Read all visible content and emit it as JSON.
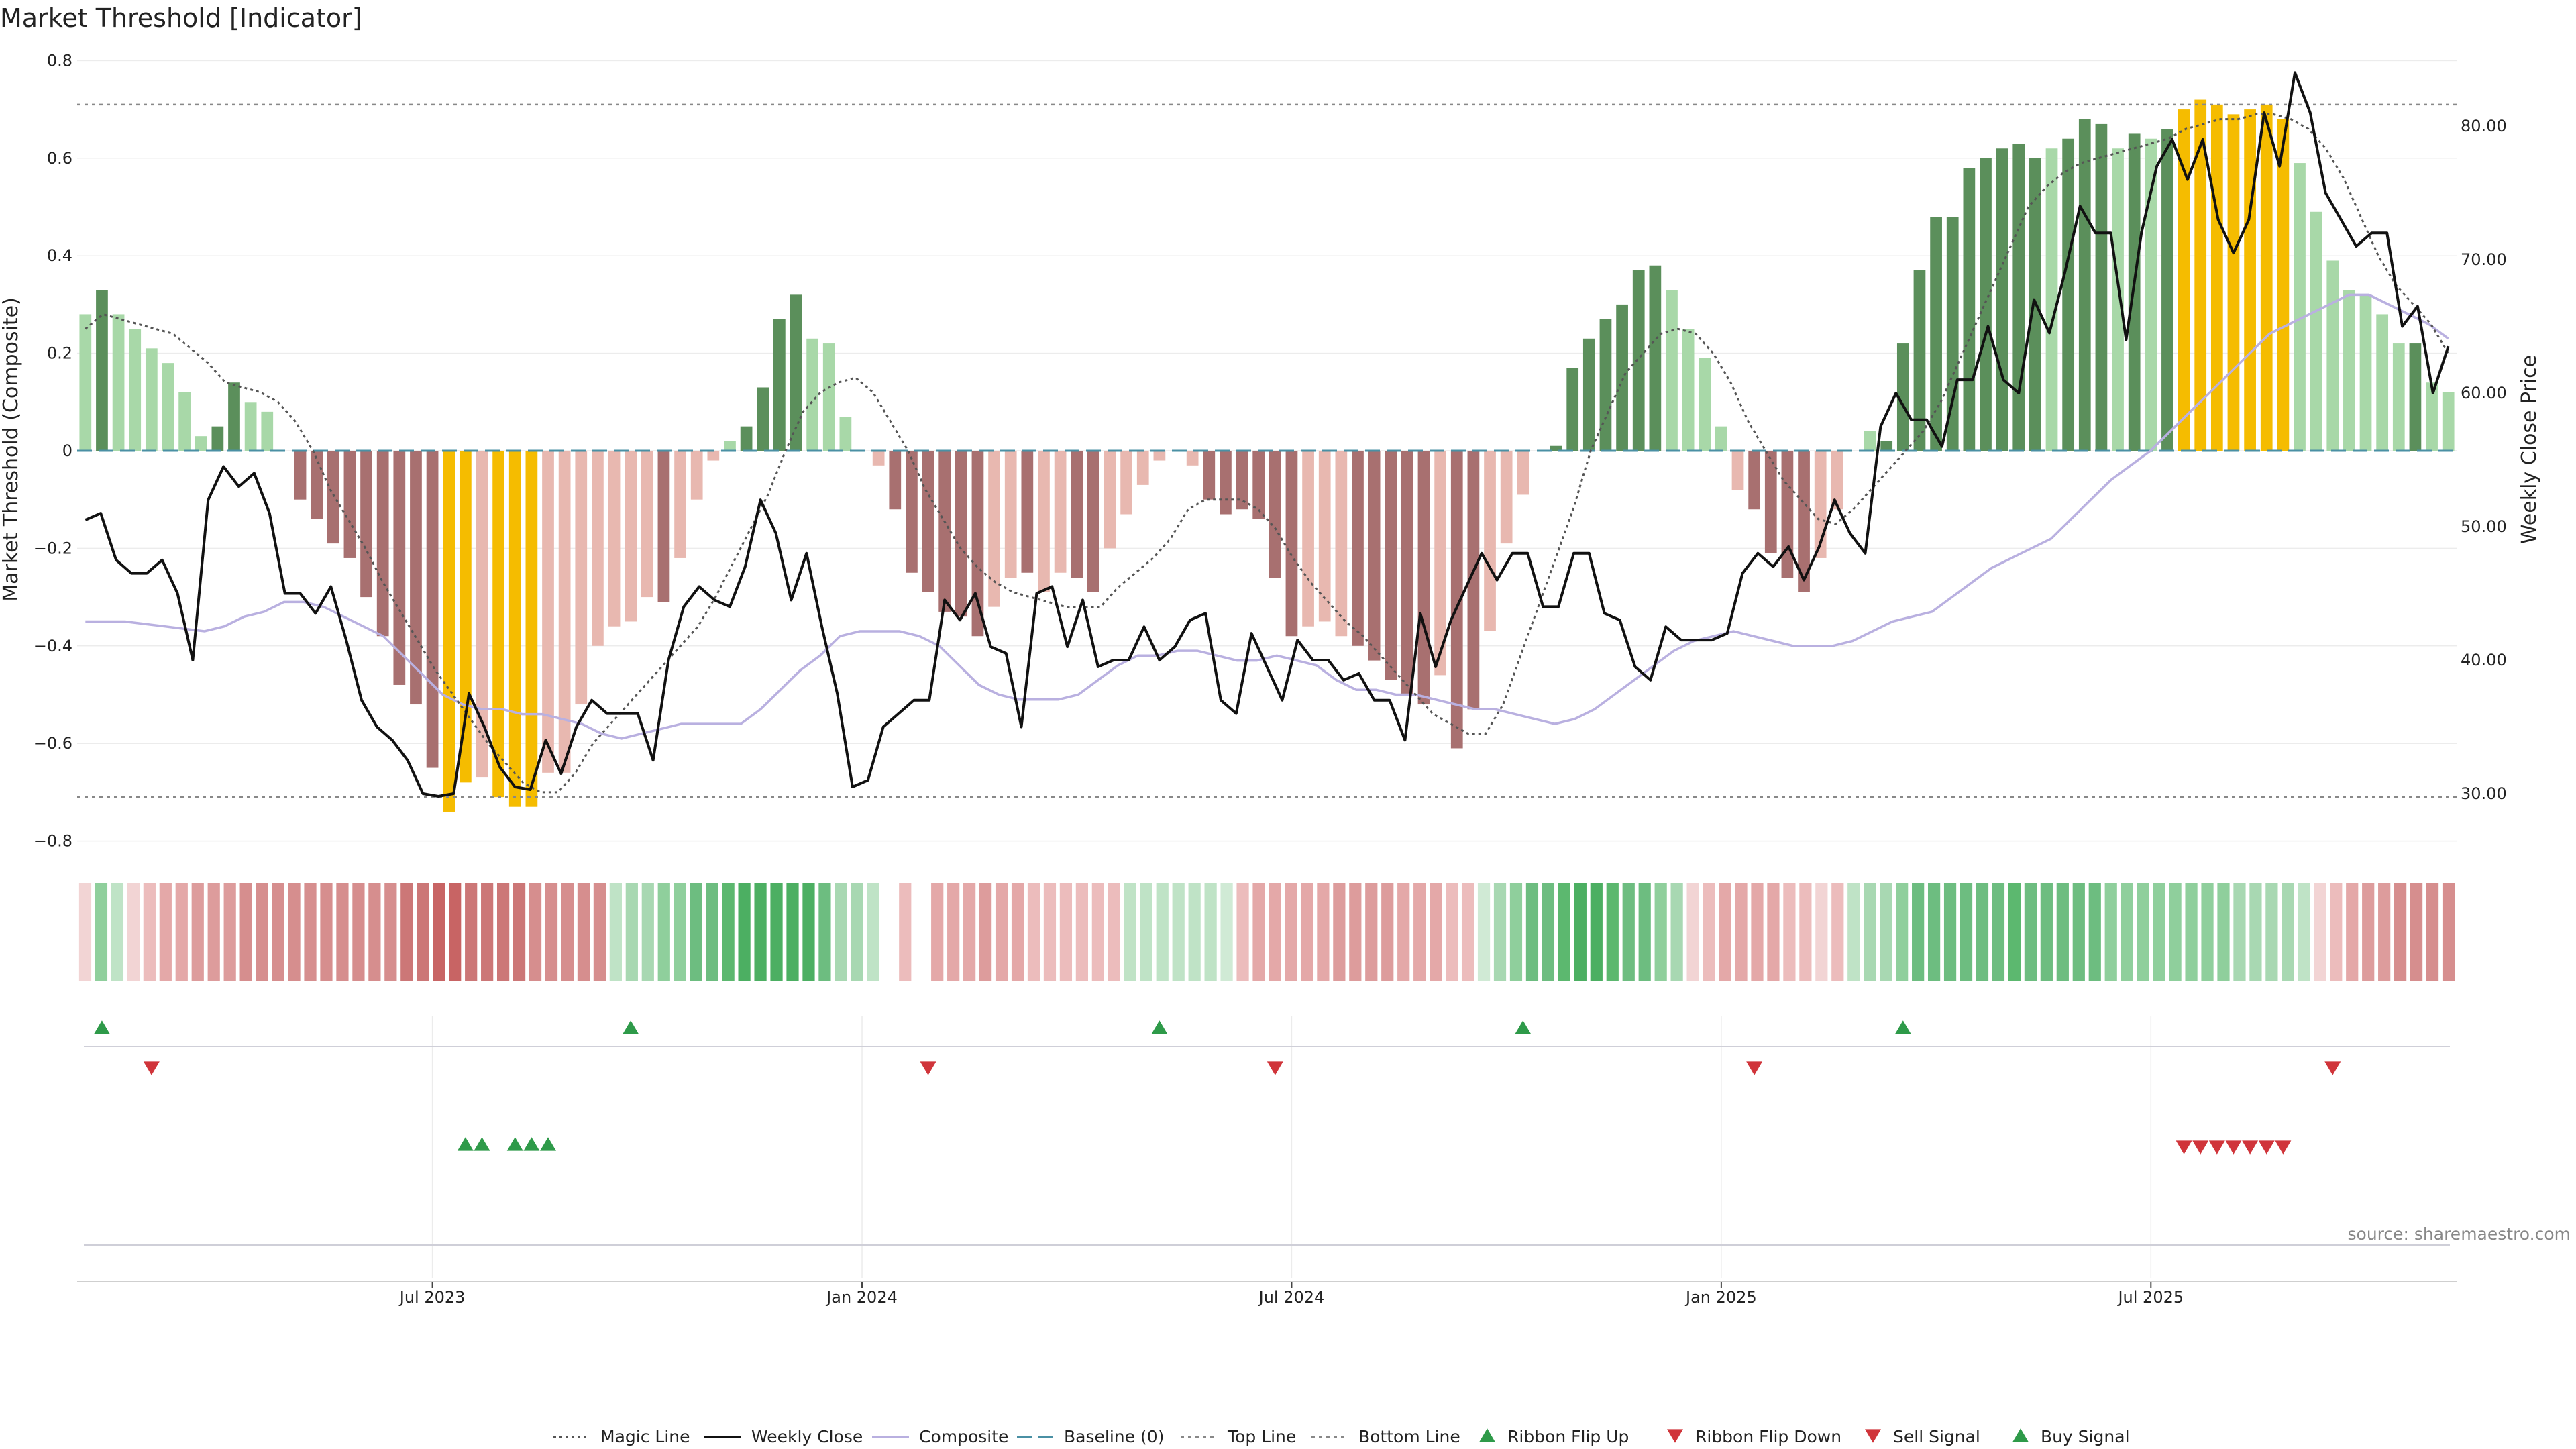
{
  "chart_data": {
    "type": "bar",
    "title": "Market Threshold [Indicator]",
    "ylabel": "Market Threshold (Composite)",
    "ylabel_right": "Weekly Close Price",
    "ylim": [
      -0.8,
      0.8
    ],
    "ylim_right": [
      24,
      88
    ],
    "yticks": [
      "0.8",
      "0.6",
      "0.4",
      "0.2",
      "0",
      "−0.2",
      "−0.4",
      "−0.6",
      "−0.8"
    ],
    "yticks_values": [
      0.8,
      0.6,
      0.4,
      0.2,
      0,
      -0.2,
      -0.4,
      -0.6,
      -0.8
    ],
    "yticks_right": [
      "80.00",
      "70.00",
      "60.00",
      "50.00",
      "40.00",
      "30.00"
    ],
    "yticks_right_values": [
      80,
      70,
      60,
      50,
      40,
      30
    ],
    "xticks": [
      "Jul 2023",
      "Jan 2024",
      "Jul 2024",
      "Jan 2025",
      "Jul 2025"
    ],
    "xticks_index": [
      21,
      47,
      73,
      99,
      125
    ],
    "top_line": 0.71,
    "bottom_line": -0.71,
    "composite": [
      0.28,
      0.33,
      0.28,
      0.25,
      0.21,
      0.18,
      0.12,
      0.03,
      0.05,
      0.14,
      0.1,
      0.08,
      0,
      -0.1,
      -0.14,
      -0.19,
      -0.22,
      -0.3,
      -0.38,
      -0.48,
      -0.52,
      -0.65,
      -0.74,
      -0.68,
      -0.67,
      -0.71,
      -0.73,
      -0.73,
      -0.66,
      -0.66,
      -0.52,
      -0.4,
      -0.36,
      -0.35,
      -0.3,
      -0.31,
      -0.22,
      -0.1,
      -0.02,
      0.02,
      0.05,
      0.13,
      0.27,
      0.32,
      0.23,
      0.22,
      0.07,
      0,
      -0.03,
      -0.12,
      -0.25,
      -0.29,
      -0.33,
      -0.34,
      -0.38,
      -0.32,
      -0.26,
      -0.25,
      -0.29,
      -0.25,
      -0.26,
      -0.29,
      -0.2,
      -0.13,
      -0.07,
      -0.02,
      0,
      -0.03,
      -0.1,
      -0.13,
      -0.12,
      -0.14,
      -0.26,
      -0.38,
      -0.36,
      -0.35,
      -0.38,
      -0.4,
      -0.43,
      -0.47,
      -0.5,
      -0.52,
      -0.46,
      -0.61,
      -0.53,
      -0.37,
      -0.19,
      -0.09,
      0,
      0.01,
      0.17,
      0.23,
      0.27,
      0.3,
      0.37,
      0.38,
      0.33,
      0.25,
      0.19,
      0.05,
      -0.08,
      -0.12,
      -0.21,
      -0.26,
      -0.29,
      -0.22,
      -0.12,
      0,
      0.04,
      0.02,
      0.22,
      0.37,
      0.48,
      0.48,
      0.58,
      0.6,
      0.62,
      0.63,
      0.6,
      0.62,
      0.64,
      0.68,
      0.67,
      0.62,
      0.65,
      0.64,
      0.66,
      0.7,
      0.72,
      0.71,
      0.69,
      0.7,
      0.71,
      0.68,
      0.59,
      0.49,
      0.39,
      0.33,
      0.32,
      0.28,
      0.22,
      0.22,
      0.14,
      0.12
    ],
    "weekly_close": [
      50.5,
      51,
      47.5,
      46.5,
      46.5,
      47.5,
      45,
      40,
      52,
      54.5,
      53,
      54,
      51,
      45,
      45,
      43.5,
      45.5,
      41.5,
      37,
      35,
      34,
      32.5,
      30,
      29.8,
      30,
      37.5,
      35,
      32,
      30.5,
      30.3,
      34,
      31.5,
      35,
      37,
      36,
      36,
      36,
      32.5,
      40,
      44,
      45.5,
      44.5,
      44,
      47,
      52,
      49.5,
      44.5,
      48,
      42.5,
      37.5,
      30.5,
      31,
      35,
      36,
      37,
      37,
      44.5,
      43,
      45,
      41,
      40.5,
      35,
      45,
      45.5,
      41,
      44.5,
      39.5,
      40,
      40,
      42.5,
      40,
      41,
      43,
      43.5,
      37,
      36,
      42,
      39.5,
      37,
      41.5,
      40,
      40,
      38.5,
      39,
      37,
      37,
      34,
      43.5,
      39.5,
      43,
      45.5,
      48,
      46,
      48,
      48,
      44,
      44,
      48,
      48,
      43.5,
      43,
      39.5,
      38.5,
      42.5,
      41.5,
      41.5,
      41.5,
      42,
      46.5,
      48,
      47,
      48.5,
      46,
      48.5,
      52,
      49.5,
      48,
      57.5,
      60,
      58,
      58,
      56,
      61,
      61,
      65,
      61,
      60,
      67,
      64.5,
      69,
      74,
      72,
      72,
      64,
      72,
      77,
      79,
      76,
      79,
      73,
      70.5,
      73,
      81,
      77,
      84,
      81,
      75,
      73,
      71,
      72,
      72,
      65,
      66.5,
      60,
      63.5
    ],
    "magic_line": [
      0.25,
      0.28,
      0.27,
      0.26,
      0.25,
      0.24,
      0.21,
      0.18,
      0.14,
      0.13,
      0.12,
      0.1,
      0.06,
      0,
      -0.08,
      -0.14,
      -0.2,
      -0.27,
      -0.33,
      -0.39,
      -0.45,
      -0.5,
      -0.55,
      -0.6,
      -0.64,
      -0.68,
      -0.7,
      -0.7,
      -0.66,
      -0.6,
      -0.56,
      -0.52,
      -0.48,
      -0.44,
      -0.4,
      -0.36,
      -0.3,
      -0.23,
      -0.16,
      -0.09,
      0,
      0.08,
      0.12,
      0.14,
      0.15,
      0.12,
      0.06,
      0,
      -0.08,
      -0.14,
      -0.2,
      -0.24,
      -0.27,
      -0.29,
      -0.3,
      -0.31,
      -0.32,
      -0.32,
      -0.32,
      -0.28,
      -0.25,
      -0.22,
      -0.18,
      -0.12,
      -0.1,
      -0.1,
      -0.1,
      -0.12,
      -0.16,
      -0.22,
      -0.27,
      -0.31,
      -0.35,
      -0.38,
      -0.42,
      -0.46,
      -0.5,
      -0.54,
      -0.56,
      -0.58,
      -0.58,
      -0.52,
      -0.42,
      -0.32,
      -0.22,
      -0.12,
      0,
      0.08,
      0.16,
      0.2,
      0.24,
      0.25,
      0.24,
      0.2,
      0.14,
      0.06,
      0,
      -0.06,
      -0.1,
      -0.14,
      -0.15,
      -0.12,
      -0.08,
      -0.04,
      0,
      0.04,
      0.1,
      0.18,
      0.26,
      0.34,
      0.42,
      0.5,
      0.54,
      0.57,
      0.59,
      0.6,
      0.61,
      0.62,
      0.63,
      0.64,
      0.66,
      0.67,
      0.68,
      0.68,
      0.69,
      0.69,
      0.68,
      0.66,
      0.62,
      0.56,
      0.48,
      0.4,
      0.34,
      0.3,
      0.26,
      0.2
    ],
    "composite_smooth": [
      -0.35,
      -0.35,
      -0.35,
      -0.355,
      -0.36,
      -0.365,
      -0.37,
      -0.36,
      -0.34,
      -0.33,
      -0.31,
      -0.31,
      -0.32,
      -0.34,
      -0.36,
      -0.38,
      -0.42,
      -0.46,
      -0.5,
      -0.52,
      -0.53,
      -0.53,
      -0.54,
      -0.54,
      -0.55,
      -0.56,
      -0.58,
      -0.59,
      -0.58,
      -0.57,
      -0.56,
      -0.56,
      -0.56,
      -0.56,
      -0.53,
      -0.49,
      -0.45,
      -0.42,
      -0.38,
      -0.37,
      -0.37,
      -0.37,
      -0.38,
      -0.4,
      -0.44,
      -0.48,
      -0.5,
      -0.51,
      -0.51,
      -0.51,
      -0.5,
      -0.47,
      -0.44,
      -0.42,
      -0.42,
      -0.41,
      -0.41,
      -0.42,
      -0.43,
      -0.43,
      -0.42,
      -0.43,
      -0.44,
      -0.47,
      -0.49,
      -0.49,
      -0.5,
      -0.5,
      -0.51,
      -0.52,
      -0.53,
      -0.53,
      -0.54,
      -0.55,
      -0.56,
      -0.55,
      -0.53,
      -0.5,
      -0.47,
      -0.44,
      -0.41,
      -0.39,
      -0.38,
      -0.37,
      -0.38,
      -0.39,
      -0.4,
      -0.4,
      -0.4,
      -0.39,
      -0.37,
      -0.35,
      -0.34,
      -0.33,
      -0.3,
      -0.27,
      -0.24,
      -0.22,
      -0.2,
      -0.18,
      -0.14,
      -0.1,
      -0.06,
      -0.03,
      0,
      0.04,
      0.08,
      0.12,
      0.16,
      0.2,
      0.24,
      0.26,
      0.28,
      0.3,
      0.32,
      0.32,
      0.3,
      0.28,
      0.26,
      0.23
    ],
    "bar_colors": [
      "#a8d8a8",
      "#5b8f5b",
      "#a8d8a8",
      "#a8d8a8",
      "#a8d8a8",
      "#a8d8a8",
      "#a8d8a8",
      "#a8d8a8",
      "#5b8f5b",
      "#5b8f5b",
      "#a8d8a8",
      "#a8d8a8",
      "#a8d8a8",
      "#a87070",
      "#a87070",
      "#a87070",
      "#a87070",
      "#a87070",
      "#a87070",
      "#a87070",
      "#a87070",
      "#a87070",
      "#f5bc00",
      "#f5bc00",
      "#e8b8b0",
      "#f5bc00",
      "#f5bc00",
      "#f5bc00",
      "#e8b8b0",
      "#e8b8b0",
      "#e8b8b0",
      "#e8b8b0",
      "#e8b8b0",
      "#e8b8b0",
      "#e8b8b0",
      "#a87070",
      "#e8b8b0",
      "#e8b8b0",
      "#e8b8b0",
      "#a8d8a8",
      "#5b8f5b",
      "#5b8f5b",
      "#5b8f5b",
      "#5b8f5b",
      "#a8d8a8",
      "#a8d8a8",
      "#a8d8a8",
      "#a8d8a8",
      "#e8b8b0",
      "#a87070",
      "#a87070",
      "#a87070",
      "#a87070",
      "#a87070",
      "#a87070",
      "#e8b8b0",
      "#e8b8b0",
      "#a87070",
      "#e8b8b0",
      "#e8b8b0",
      "#a87070",
      "#a87070",
      "#e8b8b0",
      "#e8b8b0",
      "#e8b8b0",
      "#e8b8b0",
      "#a8d8a8",
      "#e8b8b0",
      "#a87070",
      "#a87070",
      "#a87070",
      "#a87070",
      "#a87070",
      "#a87070",
      "#e8b8b0",
      "#e8b8b0",
      "#e8b8b0",
      "#a87070",
      "#a87070",
      "#a87070",
      "#a87070",
      "#a87070",
      "#e8b8b0",
      "#a87070",
      "#a87070",
      "#e8b8b0",
      "#e8b8b0",
      "#e8b8b0",
      "#5b8f5b",
      "#5b8f5b",
      "#5b8f5b",
      "#5b8f5b",
      "#5b8f5b",
      "#5b8f5b",
      "#5b8f5b",
      "#5b8f5b",
      "#a8d8a8",
      "#a8d8a8",
      "#a8d8a8",
      "#a8d8a8",
      "#e8b8b0",
      "#a87070",
      "#a87070",
      "#a87070",
      "#a87070",
      "#e8b8b0",
      "#e8b8b0",
      "#a8d8a8",
      "#a8d8a8",
      "#5b8f5b",
      "#5b8f5b",
      "#5b8f5b",
      "#5b8f5b",
      "#5b8f5b",
      "#5b8f5b",
      "#5b8f5b",
      "#5b8f5b",
      "#5b8f5b",
      "#5b8f5b",
      "#a8d8a8",
      "#5b8f5b",
      "#5b8f5b",
      "#5b8f5b",
      "#a8d8a8",
      "#5b8f5b",
      "#a8d8a8",
      "#5b8f5b",
      "#f5bc00",
      "#f5bc00",
      "#f5bc00",
      "#f5bc00",
      "#f5bc00",
      "#f5bc00",
      "#f5bc00",
      "#a8d8a8",
      "#a8d8a8",
      "#a8d8a8",
      "#a8d8a8",
      "#a8d8a8",
      "#a8d8a8",
      "#a8d8a8",
      "#5b8f5b",
      "#a8d8a8",
      "#a8d8a8"
    ],
    "ribbon_colors": [
      "#f2d4d4",
      "#8fcf9c",
      "#bfe3c6",
      "#f2d4d4",
      "#ecbcbc",
      "#e4a8a8",
      "#e4a8a8",
      "#dd9c9c",
      "#dd9c9c",
      "#dd9c9c",
      "#d68e8e",
      "#d68e8e",
      "#d68e8e",
      "#d68e8e",
      "#d68e8e",
      "#d68e8e",
      "#d68e8e",
      "#d68e8e",
      "#d68e8e",
      "#d68e8e",
      "#cc7777",
      "#cc7777",
      "#c86464",
      "#c86464",
      "#cc7777",
      "#cc7777",
      "#cc7777",
      "#cc7777",
      "#d68e8e",
      "#d68e8e",
      "#d68e8e",
      "#d68e8e",
      "#d68e8e",
      "#bfe3c6",
      "#a8d8b2",
      "#a8d8b2",
      "#8fcf9c",
      "#8fcf9c",
      "#6dbd80",
      "#6dbd80",
      "#5cb86f",
      "#4caf62",
      "#4caf62",
      "#4caf62",
      "#4caf62",
      "#4caf62",
      "#6dbd80",
      "#a8d8b2",
      "#a8d8b2",
      "#bfe3c6",
      "#ffffff",
      "#ecbcbc",
      "#ffffff",
      "#e4a8a8",
      "#e4a8a8",
      "#e4a8a8",
      "#dd9c9c",
      "#e4a8a8",
      "#e4a8a8",
      "#ecbcbc",
      "#ecbcbc",
      "#ecbcbc",
      "#ecbcbc",
      "#ecbcbc",
      "#ecbcbc",
      "#bfe3c6",
      "#bfe3c6",
      "#bfe3c6",
      "#bfe3c6",
      "#bfe3c6",
      "#bfe3c6",
      "#d0ead5",
      "#ecbcbc",
      "#e4a8a8",
      "#e4a8a8",
      "#e4a8a8",
      "#e4a8a8",
      "#e4a8a8",
      "#dd9c9c",
      "#dd9c9c",
      "#dd9c9c",
      "#dd9c9c",
      "#e4a8a8",
      "#e4a8a8",
      "#e4a8a8",
      "#ecbcbc",
      "#ecbcbc",
      "#d0ead5",
      "#a8d8b2",
      "#8fcf9c",
      "#6dbd80",
      "#6dbd80",
      "#5cb86f",
      "#4caf62",
      "#4caf62",
      "#5cb86f",
      "#6dbd80",
      "#6dbd80",
      "#8fcf9c",
      "#a8d8b2",
      "#f2d4d4",
      "#ecbcbc",
      "#e4a8a8",
      "#e4a8a8",
      "#e4a8a8",
      "#e4a8a8",
      "#ecbcbc",
      "#ecbcbc",
      "#f2d4d4",
      "#ecbcbc",
      "#bfe3c6",
      "#a8d8b2",
      "#a8d8b2",
      "#8fcf9c",
      "#6dbd80",
      "#6dbd80",
      "#6dbd80",
      "#6dbd80",
      "#6dbd80",
      "#6dbd80",
      "#5cb86f",
      "#6dbd80",
      "#6dbd80",
      "#6dbd80",
      "#6dbd80",
      "#6dbd80",
      "#8fcf9c",
      "#8fcf9c",
      "#8fcf9c",
      "#8fcf9c",
      "#8fcf9c",
      "#8fcf9c",
      "#8fcf9c",
      "#8fcf9c",
      "#a8d8b2",
      "#a8d8b2",
      "#a8d8b2",
      "#a8d8b2",
      "#bfe3c6",
      "#f2d4d4",
      "#ecbcbc",
      "#e4a8a8",
      "#dd9c9c",
      "#dd9c9c",
      "#d68e8e",
      "#d68e8e",
      "#d68e8e",
      "#d68e8e"
    ],
    "ribbon_flip_up": [
      1,
      33,
      65,
      87,
      110
    ],
    "ribbon_flip_down": [
      4,
      51,
      72,
      101,
      136
    ],
    "buy_signal": [
      23,
      24,
      26,
      27,
      28
    ],
    "sell_signal": [
      127,
      128,
      129,
      130,
      131,
      132,
      133
    ],
    "colors": {
      "magic_line": "#555555",
      "weekly_close": "#111111",
      "composite_smooth": "#b9b0e0",
      "baseline": "#4a90a4",
      "threshold_lines": "#888888",
      "buy": "#2e9a49",
      "sell": "#d0343a",
      "grid": "#ececec"
    }
  },
  "legend": {
    "magic_line": "Magic Line",
    "weekly_close": "Weekly Close",
    "composite": "Composite",
    "baseline": "Baseline (0)",
    "top_line": "Top Line",
    "bottom_line": "Bottom Line",
    "ribbon_flip_up": "Ribbon Flip Up",
    "ribbon_flip_down": "Ribbon Flip Down",
    "sell_signal": "Sell Signal",
    "buy_signal": "Buy Signal"
  },
  "source": "source: sharemaestro.com"
}
